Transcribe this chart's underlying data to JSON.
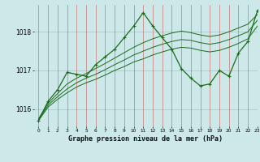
{
  "xlabel": "Graphe pression niveau de la mer (hPa)",
  "xlim": [
    -0.5,
    23
  ],
  "ylim": [
    1015.55,
    1018.7
  ],
  "yticks": [
    1016,
    1017,
    1018
  ],
  "bg_color": "#cde8e8",
  "grid_color_h": "#aacccc",
  "grid_color_v": "#cc4444",
  "line_color": "#1a6b1a",
  "hours": [
    0,
    1,
    2,
    3,
    4,
    5,
    6,
    7,
    8,
    9,
    10,
    11,
    12,
    13,
    14,
    15,
    16,
    17,
    18,
    19,
    20,
    21,
    22,
    23
  ],
  "main_line": [
    1015.7,
    1016.2,
    1016.5,
    1016.95,
    1016.9,
    1016.85,
    1017.15,
    1017.35,
    1017.55,
    1017.85,
    1018.15,
    1018.5,
    1018.15,
    1017.85,
    1017.55,
    1017.05,
    1016.8,
    1016.6,
    1016.65,
    1017.0,
    1016.85,
    1017.45,
    1017.75,
    1018.55
  ],
  "smooth_upper": [
    1015.75,
    1016.15,
    1016.4,
    1016.65,
    1016.8,
    1016.92,
    1017.05,
    1017.18,
    1017.32,
    1017.46,
    1017.6,
    1017.72,
    1017.82,
    1017.9,
    1017.97,
    1018.02,
    1017.98,
    1017.92,
    1017.88,
    1017.92,
    1018.0,
    1018.1,
    1018.2,
    1018.45
  ],
  "smooth_mid": [
    1015.72,
    1016.1,
    1016.32,
    1016.52,
    1016.68,
    1016.8,
    1016.9,
    1017.02,
    1017.15,
    1017.27,
    1017.4,
    1017.5,
    1017.6,
    1017.68,
    1017.75,
    1017.8,
    1017.78,
    1017.72,
    1017.68,
    1017.72,
    1017.8,
    1017.9,
    1018.0,
    1018.3
  ],
  "smooth_lower": [
    1015.7,
    1016.05,
    1016.25,
    1016.42,
    1016.57,
    1016.68,
    1016.77,
    1016.88,
    1017.0,
    1017.1,
    1017.22,
    1017.3,
    1017.4,
    1017.48,
    1017.55,
    1017.6,
    1017.58,
    1017.52,
    1017.48,
    1017.52,
    1017.6,
    1017.7,
    1017.82,
    1018.15
  ]
}
